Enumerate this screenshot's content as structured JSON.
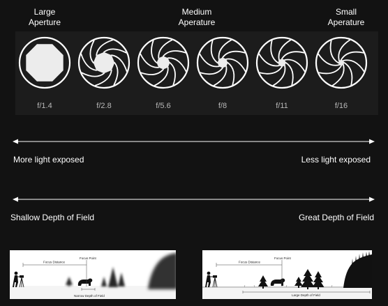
{
  "headers": {
    "large": [
      "Large",
      "Aperture"
    ],
    "medium": [
      "Medium",
      "Aperature"
    ],
    "small": [
      "Small",
      "Aperature"
    ]
  },
  "apertures": [
    {
      "fstop": "f/1.4",
      "opening": 0.85
    },
    {
      "fstop": "f/2.8",
      "opening": 0.45
    },
    {
      "fstop": "f/5.6",
      "opening": 0.28
    },
    {
      "fstop": "f/8",
      "opening": 0.22
    },
    {
      "fstop": "f/11",
      "opening": 0.17
    },
    {
      "fstop": "f/16",
      "opening": 0.13
    }
  ],
  "light_scale": {
    "left": "More light exposed",
    "right": "Less light exposed"
  },
  "depth_scale": {
    "left": "Shallow Depth of Field",
    "right": "Great Depth of Field"
  },
  "scenes": {
    "shallow": {
      "focus_distance": "Focus Distance",
      "focus_point": "Focus Point",
      "depth_label": "Narrow Depth of Field"
    },
    "great": {
      "focus_distance": "Focus Distance",
      "focus_point": "Focus Point",
      "depth_label": "Large Depth of Field"
    }
  },
  "colors": {
    "background": "#121212",
    "panel": "#1c1c1c",
    "blade": "#ffffff",
    "opening": "#ececec"
  }
}
